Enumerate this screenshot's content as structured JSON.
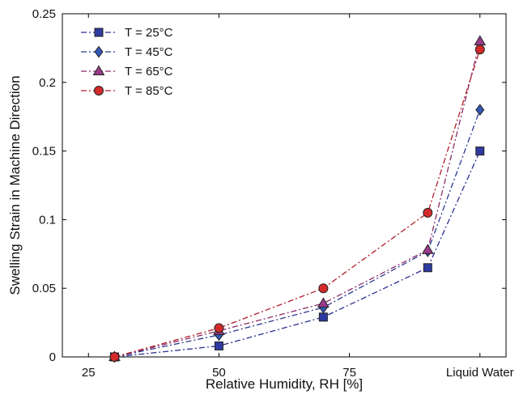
{
  "chart_data": {
    "type": "line",
    "xlabel": "Relative Humidity, RH [%]",
    "ylabel": "Swelling Strain in Machine Direction",
    "x_ticks": [
      "25",
      "50",
      "75",
      "Liquid Water"
    ],
    "y_ticks": [
      "0",
      "0.05",
      "0.1",
      "0.15",
      "0.2",
      "0.25"
    ],
    "ylim": [
      0,
      0.25
    ],
    "grid": false,
    "legend_position": "top-left",
    "x_categories": [
      "30",
      "50",
      "70",
      "90",
      "Liquid Water"
    ],
    "series": [
      {
        "name": "T = 25°C",
        "marker": "square",
        "color": "#2b2f8f",
        "fill": "#2f3aa0",
        "values": [
          0,
          0.008,
          0.029,
          0.065,
          0.15
        ]
      },
      {
        "name": "T = 45°C",
        "marker": "diamond",
        "color": "#2b3a8f",
        "fill": "#3557b5",
        "values": [
          0,
          0.016,
          0.036,
          0.077,
          0.18
        ]
      },
      {
        "name": "T = 65°C",
        "marker": "triangle",
        "color": "#8a2a6a",
        "fill": "#9a3b8a",
        "values": [
          0,
          0.019,
          0.039,
          0.078,
          0.23
        ]
      },
      {
        "name": "T = 85°C",
        "marker": "circle",
        "color": "#b01e2a",
        "fill": "#d42a2a",
        "values": [
          0,
          0.021,
          0.05,
          0.105,
          0.224
        ]
      }
    ]
  }
}
